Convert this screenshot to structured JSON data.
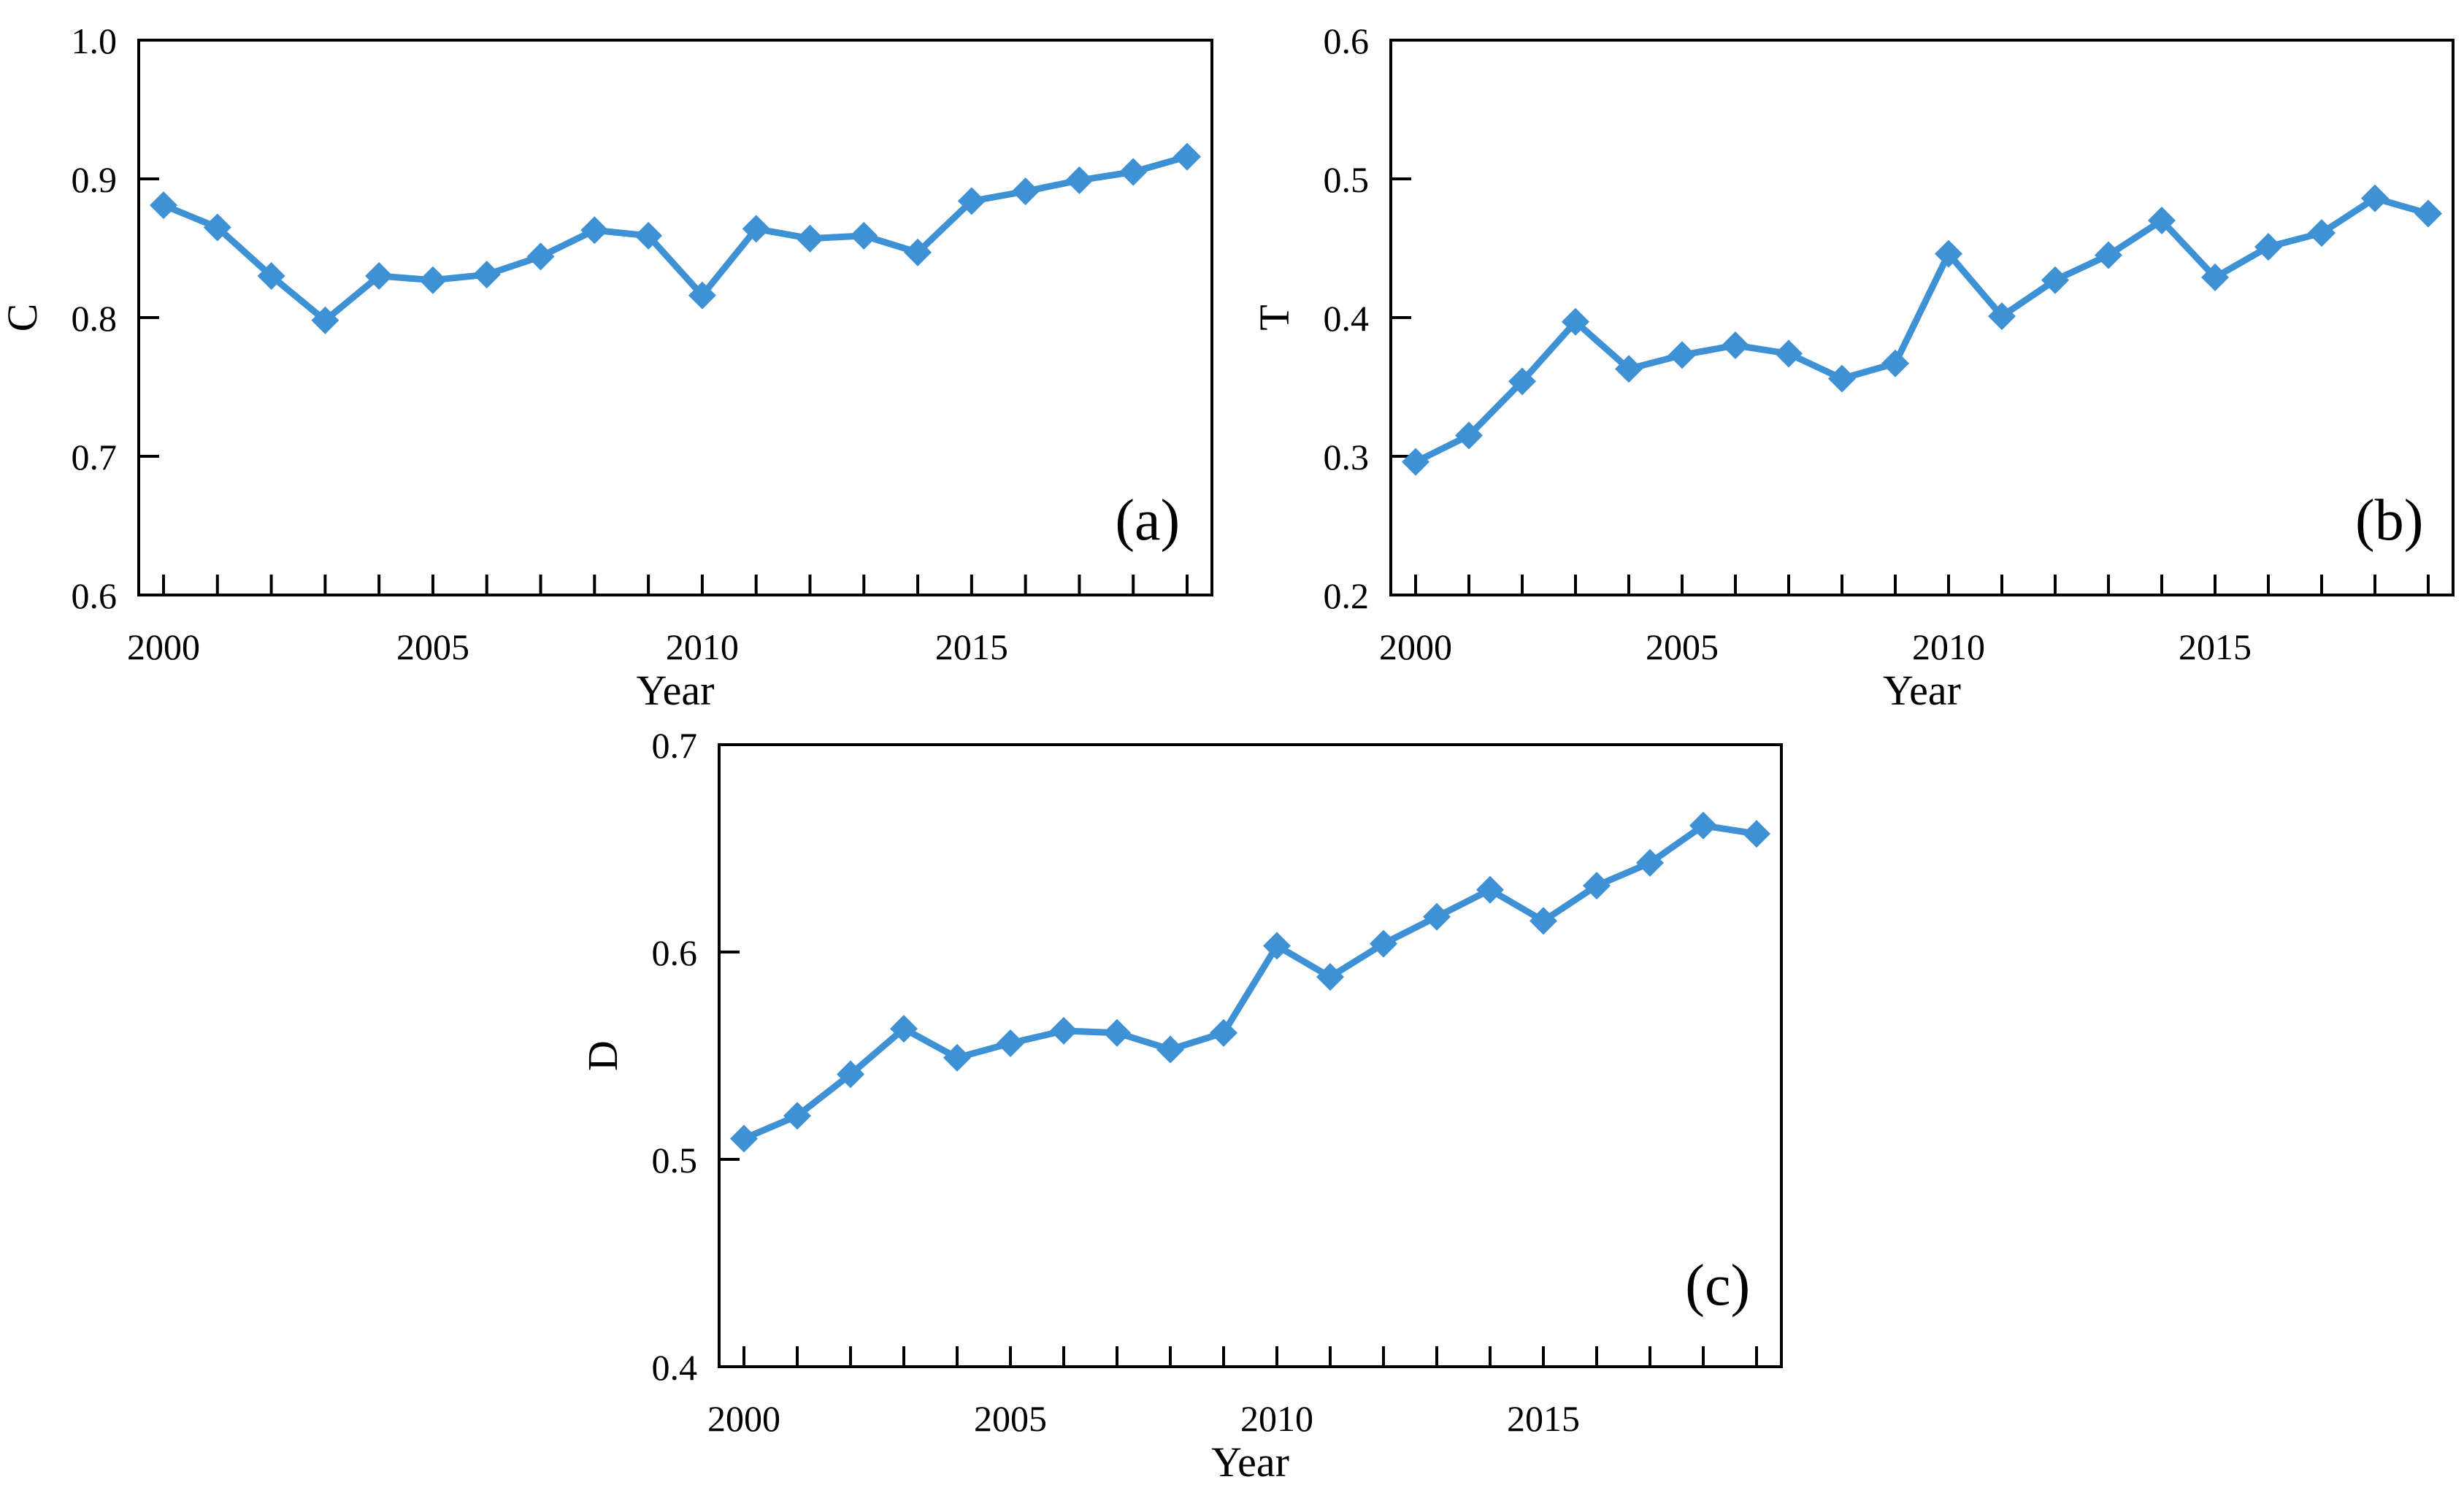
{
  "figure": {
    "background": "#ffffff",
    "line_color": "#3E91D4",
    "marker_color": "#3E91D4",
    "axis_color": "#000000",
    "text_color": "#000000"
  },
  "chart_data": [
    {
      "id": "a",
      "type": "line",
      "panel_label": "(a)",
      "xlabel": "Year",
      "ylabel": "C",
      "ylim": [
        0.6,
        1.0
      ],
      "ytick_labels": [
        "0.6",
        "0.7",
        "0.8",
        "0.9",
        "1.0"
      ],
      "xtick_label_years": [
        2000,
        2005,
        2010,
        2015
      ],
      "xtick_labels": [
        "2000",
        "2005",
        "2010",
        "2015"
      ],
      "grid": false,
      "legend": "none",
      "x": [
        2000,
        2001,
        2002,
        2003,
        2004,
        2005,
        2006,
        2007,
        2008,
        2009,
        2010,
        2011,
        2012,
        2013,
        2014,
        2015,
        2016,
        2017,
        2018,
        2019
      ],
      "values": [
        0.881,
        0.865,
        0.83,
        0.798,
        0.83,
        0.827,
        0.831,
        0.844,
        0.863,
        0.859,
        0.816,
        0.864,
        0.857,
        0.859,
        0.847,
        0.884,
        0.891,
        0.899,
        0.905,
        0.916
      ]
    },
    {
      "id": "b",
      "type": "line",
      "panel_label": "(b)",
      "xlabel": "Year",
      "ylabel": "T",
      "ylim": [
        0.2,
        0.6
      ],
      "ytick_labels": [
        "0.2",
        "0.3",
        "0.4",
        "0.5",
        "0.6"
      ],
      "xtick_label_years": [
        2000,
        2005,
        2010,
        2015
      ],
      "xtick_labels": [
        "2000",
        "2005",
        "2010",
        "2015"
      ],
      "grid": false,
      "legend": "none",
      "x": [
        2000,
        2001,
        2002,
        2003,
        2004,
        2005,
        2006,
        2007,
        2008,
        2009,
        2010,
        2011,
        2012,
        2013,
        2014,
        2015,
        2016,
        2017,
        2018,
        2019
      ],
      "values": [
        0.296,
        0.315,
        0.354,
        0.397,
        0.363,
        0.373,
        0.38,
        0.374,
        0.356,
        0.367,
        0.446,
        0.401,
        0.427,
        0.445,
        0.47,
        0.429,
        0.451,
        0.461,
        0.486,
        0.475
      ]
    },
    {
      "id": "c",
      "type": "line",
      "panel_label": "(c)",
      "xlabel": "Year",
      "ylabel": "D",
      "ylim": [
        0.4,
        0.7
      ],
      "ytick_labels": [
        "0.4",
        "0.5",
        "0.6",
        "0.7"
      ],
      "xtick_label_years": [
        2000,
        2005,
        2010,
        2015
      ],
      "xtick_labels": [
        "2000",
        "2005",
        "2010",
        "2015"
      ],
      "grid": false,
      "legend": "none",
      "x": [
        2000,
        2001,
        2002,
        2003,
        2004,
        2005,
        2006,
        2007,
        2008,
        2009,
        2010,
        2011,
        2012,
        2013,
        2014,
        2015,
        2016,
        2017,
        2018,
        2019
      ],
      "values": [
        0.51,
        0.521,
        0.541,
        0.563,
        0.549,
        0.556,
        0.562,
        0.561,
        0.553,
        0.561,
        0.603,
        0.588,
        0.604,
        0.617,
        0.63,
        0.615,
        0.632,
        0.643,
        0.661,
        0.657
      ]
    }
  ]
}
